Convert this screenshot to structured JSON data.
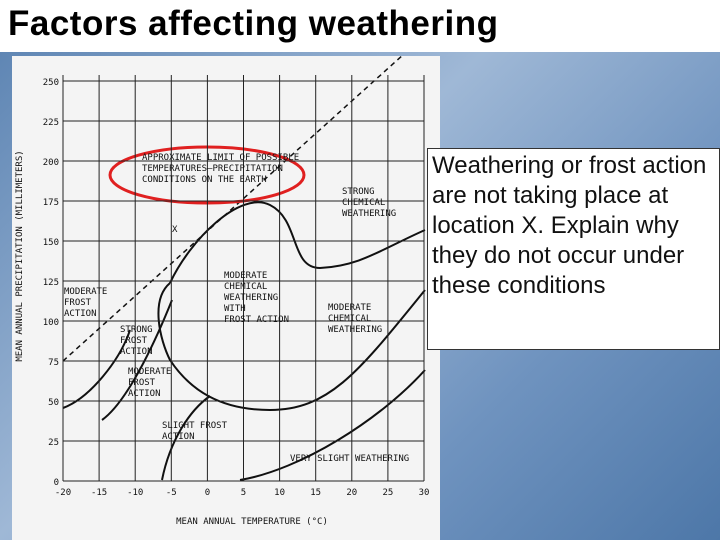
{
  "title": "Factors affecting weathering",
  "text": "Weathering or frost action are not taking place at location X. Explain why they do not occur under these conditions",
  "figure": {
    "y_axis_label": "MEAN ANNUAL PRECIPITATION (MILLIMETERS)",
    "x_axis_label": "MEAN ANNUAL TEMPERATURE (°C)",
    "xticks": [
      -20,
      -15,
      -10,
      -5,
      0,
      5,
      10,
      15,
      20,
      25,
      30
    ],
    "yticks": [
      0,
      25,
      50,
      75,
      100,
      125,
      150,
      175,
      200,
      225,
      250
    ],
    "labels": [
      {
        "lines": [
          "APPROXIMATE LIMIT OF POSSIBLE",
          "TEMPERATURES—PRECIPITATION",
          "CONDITIONS ON THE EARTH"
        ]
      },
      {
        "lines": [
          "X"
        ]
      },
      {
        "lines": [
          "STRONG",
          "CHEMICAL",
          "WEATHERING"
        ]
      },
      {
        "lines": [
          "MODERATE",
          "FROST",
          "ACTION"
        ]
      },
      {
        "lines": [
          "STRONG",
          "FROST",
          "ACTION"
        ]
      },
      {
        "lines": [
          "MODERATE",
          "CHEMICAL",
          "WEATHERING",
          "WITH",
          "FROST ACTION"
        ]
      },
      {
        "lines": [
          "MODERATE",
          "CHEMICAL",
          "WEATHERING"
        ]
      },
      {
        "lines": [
          "MODERATE",
          "FROST",
          "ACTION"
        ]
      },
      {
        "lines": [
          "SLIGHT FROST",
          "ACTION"
        ]
      },
      {
        "lines": [
          "VERY SLIGHT WEATHERING"
        ]
      }
    ]
  }
}
